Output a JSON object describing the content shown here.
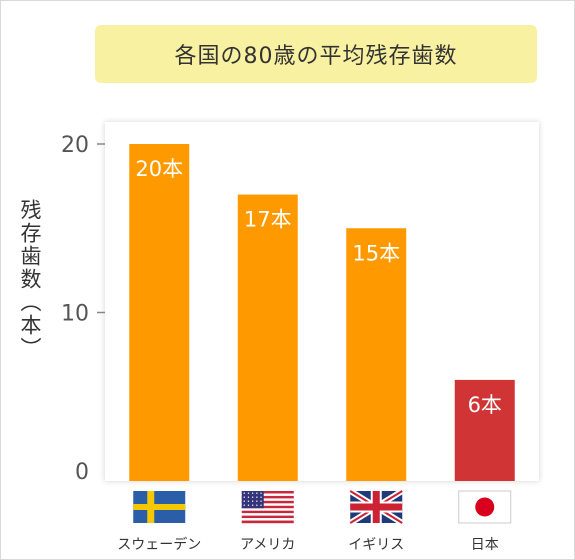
{
  "chart_data": {
    "type": "bar",
    "title": "各国の80歳の平均残存歯数",
    "ylabel": "残存歯数（本）",
    "ylim": [
      0,
      20
    ],
    "yticks": [
      "0",
      "10",
      "20"
    ],
    "categories": [
      "スウェーデン",
      "アメリカ",
      "イギリス",
      "日本"
    ],
    "flags": [
      "sweden-flag-icon",
      "usa-flag-icon",
      "uk-flag-icon",
      "japan-flag-icon"
    ],
    "values": [
      20,
      17,
      15,
      6
    ],
    "value_labels": [
      "20本",
      "17本",
      "15本",
      "6本"
    ],
    "colors": [
      "#ff9900",
      "#ff9900",
      "#ff9900",
      "#d03434"
    ],
    "grid": false
  }
}
